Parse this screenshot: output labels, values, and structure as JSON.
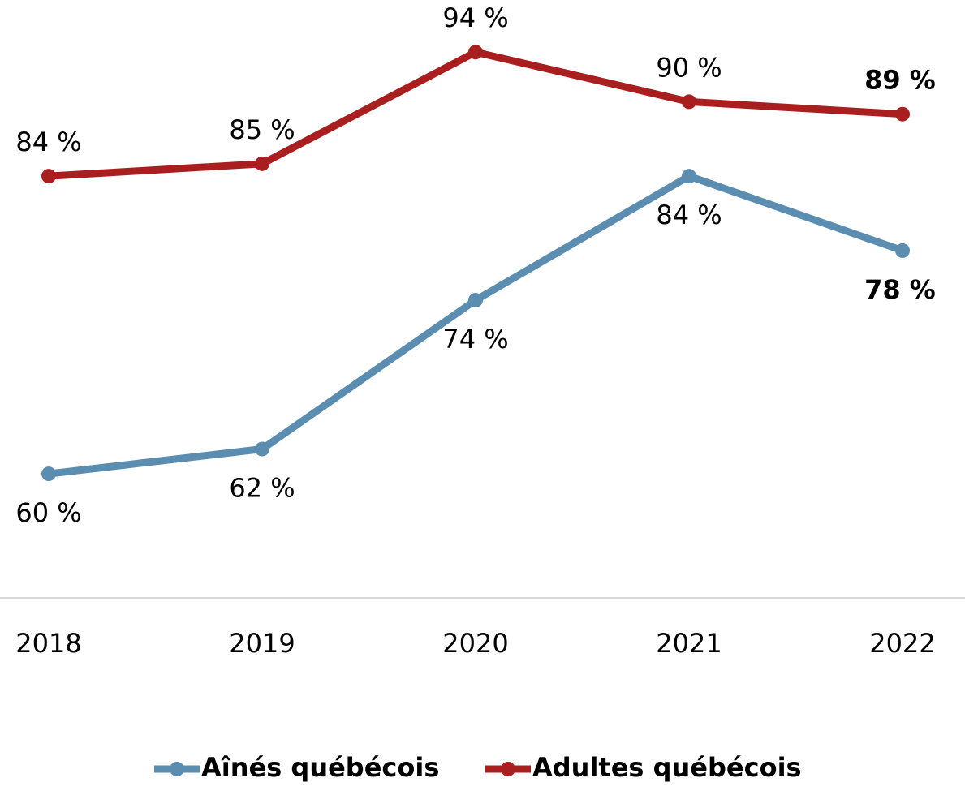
{
  "chart_data": {
    "type": "line",
    "categories": [
      "2018",
      "2019",
      "2020",
      "2021",
      "2022"
    ],
    "series": [
      {
        "name": "Aînés québécois",
        "color": "#5b8db1",
        "values": [
          60,
          62,
          74,
          84,
          78
        ],
        "value_labels": [
          "60 %",
          "62 %",
          "74 %",
          "84 %",
          "78 %"
        ]
      },
      {
        "name": "Adultes québécois",
        "color": "#a91e1e",
        "values": [
          84,
          85,
          94,
          90,
          89
        ],
        "value_labels": [
          "84 %",
          "85 %",
          "94 %",
          "90 %",
          "89 %"
        ]
      }
    ],
    "ylim": [
      50,
      100
    ]
  }
}
